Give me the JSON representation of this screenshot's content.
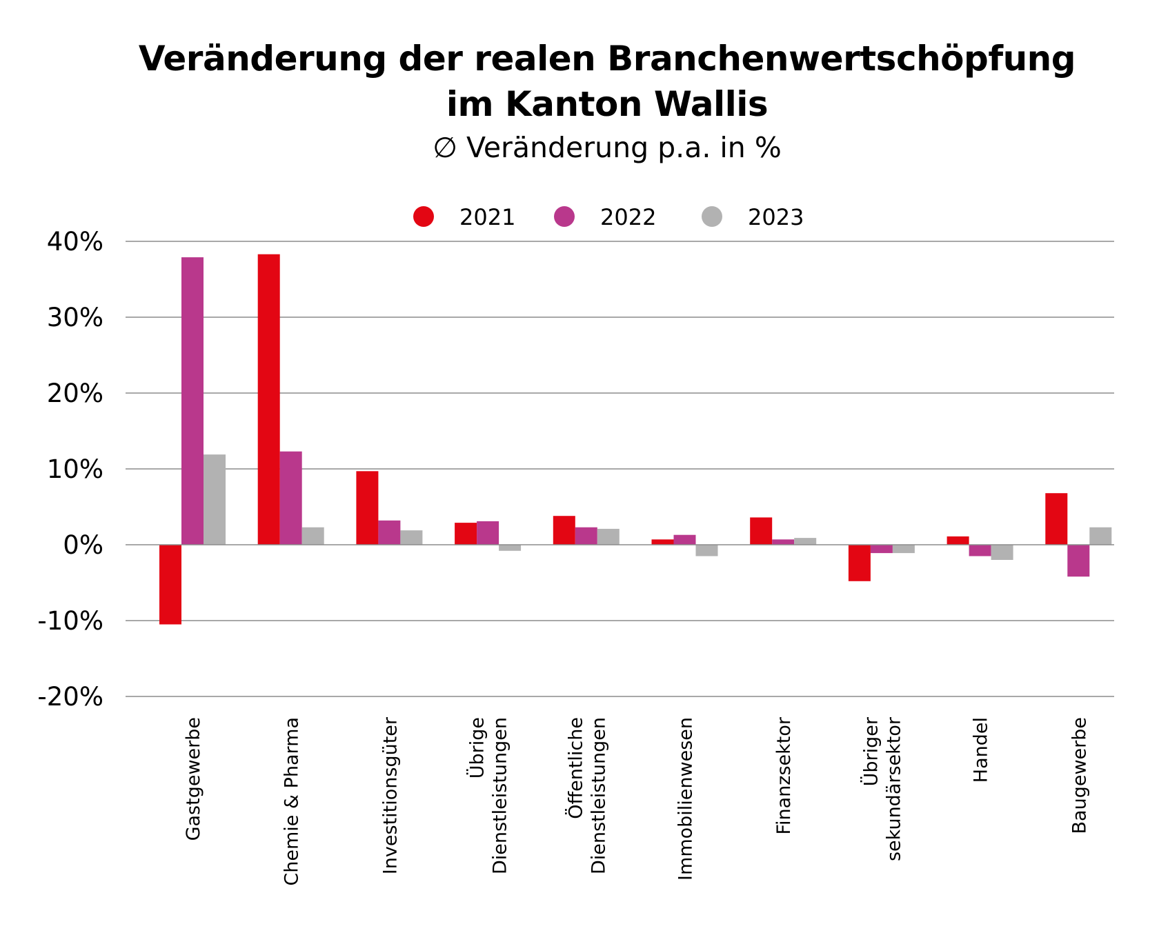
{
  "header": {
    "title_line1": "Veränderung der realen Branchenwertschöpfung",
    "title_line2": "im Kanton Wallis",
    "subtitle": "∅ Veränderung p.a. in %"
  },
  "chart_data": {
    "type": "bar",
    "title": "Veränderung der realen Branchenwertschöpfung im Kanton Wallis",
    "subtitle": "∅ Veränderung p.a. in %",
    "categories": [
      "Gastgewerbe",
      "Chemie & Pharma",
      "Investitionsgüter",
      "Übrige Dienstleistungen",
      "Öffentliche Dienstleistungen",
      "Immobilienwesen",
      "Finanzsektor",
      "Übriger sekundärsektor",
      "Handel",
      "Baugewerbe"
    ],
    "category_lines": [
      [
        "Gastgewerbe"
      ],
      [
        "Chemie & Pharma"
      ],
      [
        "Investitionsgüter"
      ],
      [
        "Übrige",
        "Dienstleistungen"
      ],
      [
        "Öffentliche",
        "Dienstleistungen"
      ],
      [
        "Immobilienwesen"
      ],
      [
        "Finanzsektor"
      ],
      [
        "Übriger",
        "sekundärsektor"
      ],
      [
        "Handel"
      ],
      [
        "Baugewerbe"
      ]
    ],
    "series": [
      {
        "name": "2021",
        "color": "#e30613",
        "values": [
          -10.5,
          38.3,
          9.7,
          2.9,
          3.8,
          0.7,
          3.6,
          -4.8,
          1.1,
          6.8
        ]
      },
      {
        "name": "2022",
        "color": "#b9388c",
        "values": [
          37.9,
          12.3,
          3.2,
          3.1,
          2.3,
          1.3,
          0.7,
          -1.1,
          -1.5,
          -4.2
        ]
      },
      {
        "name": "2023",
        "color": "#b2b2b2",
        "values": [
          11.9,
          2.3,
          1.9,
          -0.8,
          2.1,
          -1.5,
          0.9,
          -1.1,
          -2.0,
          2.3
        ]
      }
    ],
    "ylim": [
      -20,
      40
    ],
    "yticks": [
      40,
      30,
      20,
      10,
      0,
      -10,
      -20
    ],
    "ytick_labels": [
      "40%",
      "30%",
      "20%",
      "10%",
      "0%",
      "-10%",
      "-20%"
    ],
    "xlabel": "",
    "ylabel": "",
    "grid": true,
    "legend": "top-center"
  }
}
